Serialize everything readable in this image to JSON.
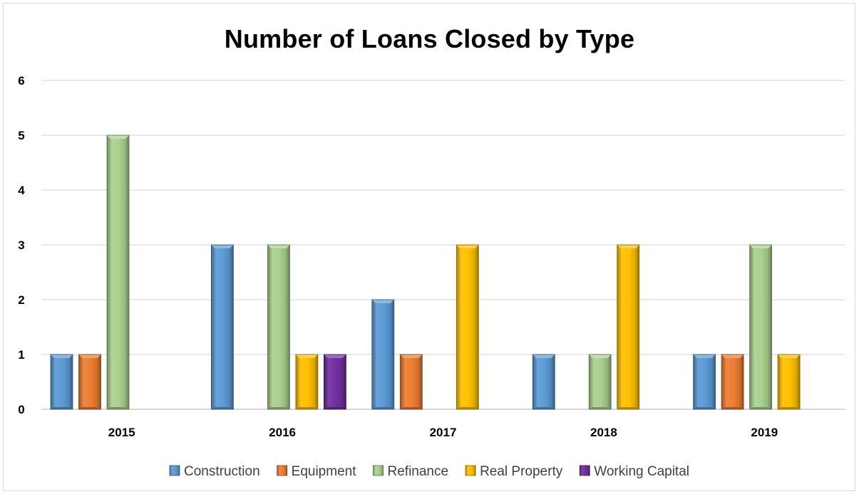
{
  "chart_data": {
    "type": "bar",
    "title": "Number of Loans Closed by Type",
    "xlabel": "",
    "ylabel": "",
    "ylim": [
      0,
      6
    ],
    "yticks": [
      0,
      1,
      2,
      3,
      4,
      5,
      6
    ],
    "grid": true,
    "legend_position": "bottom",
    "categories": [
      "2015",
      "2016",
      "2017",
      "2018",
      "2019"
    ],
    "series": [
      {
        "name": "Construction",
        "color": "#5b9bd5",
        "values": [
          1,
          3,
          2,
          1,
          1
        ]
      },
      {
        "name": "Equipment",
        "color": "#ed7d31",
        "values": [
          1,
          0,
          1,
          0,
          1
        ]
      },
      {
        "name": "Refinance",
        "color": "#a9d18e",
        "values": [
          5,
          3,
          0,
          1,
          3
        ]
      },
      {
        "name": "Real Property",
        "color": "#ffc000",
        "values": [
          0,
          1,
          3,
          3,
          1
        ]
      },
      {
        "name": "Working Capital",
        "color": "#7030a0",
        "values": [
          0,
          1,
          0,
          0,
          0
        ]
      }
    ]
  }
}
